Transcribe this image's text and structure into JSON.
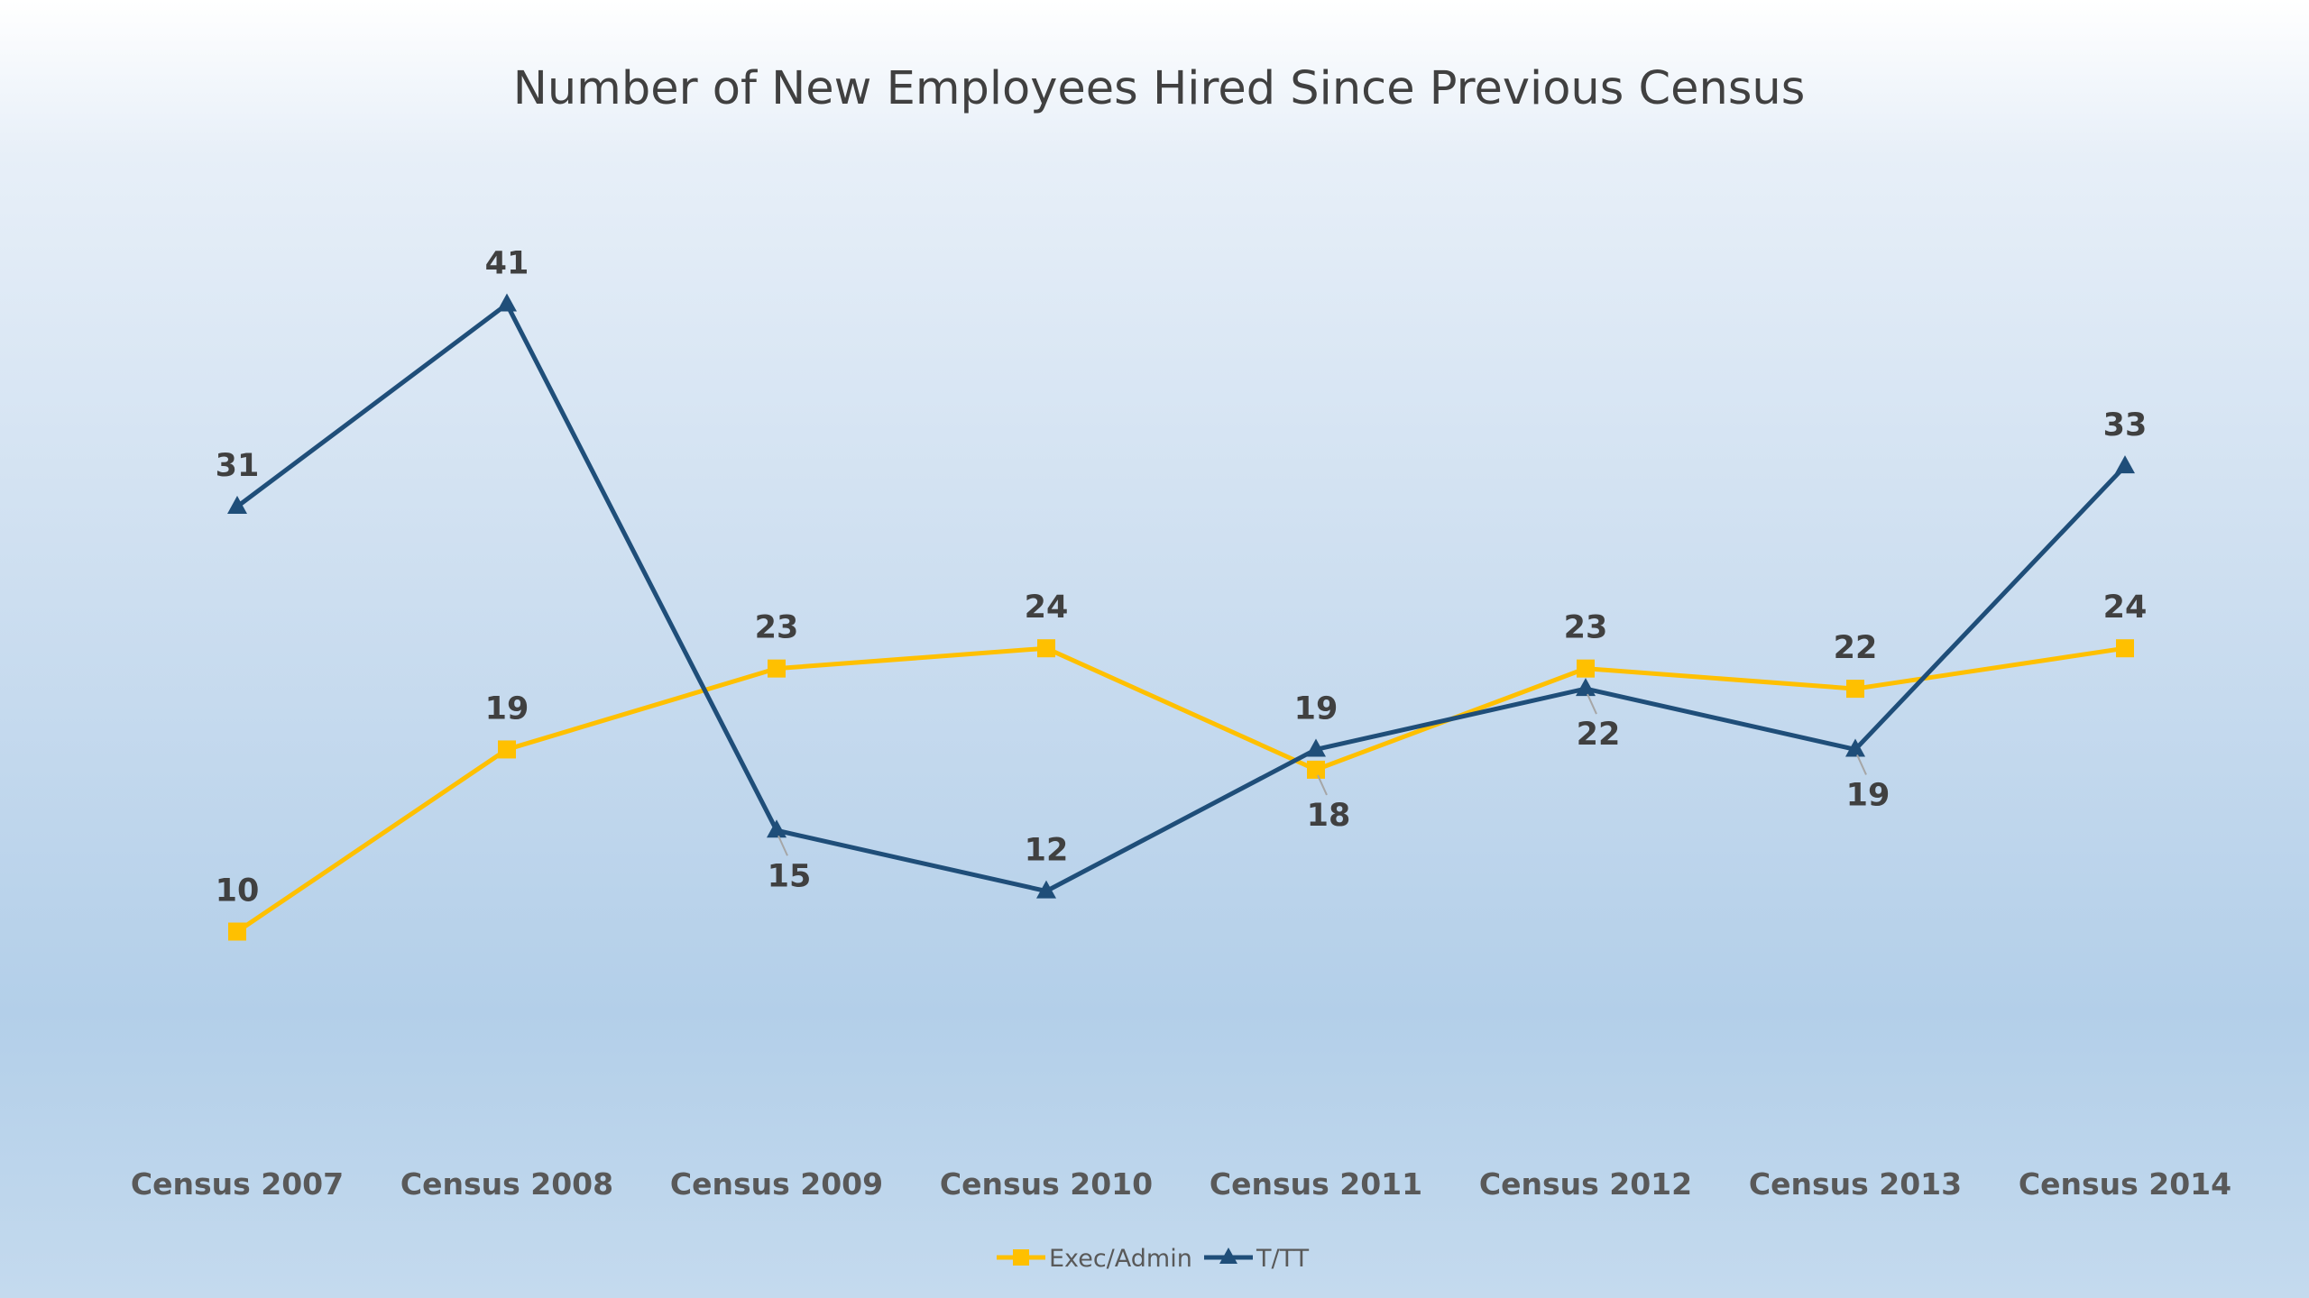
{
  "chart_data": {
    "type": "line",
    "title": "Number of New Employees Hired Since Previous Census",
    "categories": [
      "Census 2007",
      "Census 2008",
      "Census 2009",
      "Census 2010",
      "Census 2011",
      "Census 2012",
      "Census 2013",
      "Census 2014"
    ],
    "series": [
      {
        "name": "Exec/Admin",
        "values": [
          10,
          19,
          23,
          24,
          18,
          23,
          22,
          24
        ],
        "color": "#FFC000",
        "marker": "square",
        "label_position": [
          "above",
          "above",
          "above",
          "above",
          "below",
          "above",
          "above",
          "above"
        ]
      },
      {
        "name": "T/TT",
        "values": [
          31,
          41,
          15,
          12,
          19,
          22,
          19,
          33
        ],
        "color": "#1F4E79",
        "marker": "triangle",
        "label_position": [
          "above",
          "above",
          "below",
          "above",
          "above",
          "below",
          "below",
          "above"
        ]
      }
    ],
    "xlabel": "",
    "ylabel": "",
    "ylim": [
      0,
      45
    ],
    "grid": false,
    "legend": "bottom",
    "data_labels": true
  }
}
